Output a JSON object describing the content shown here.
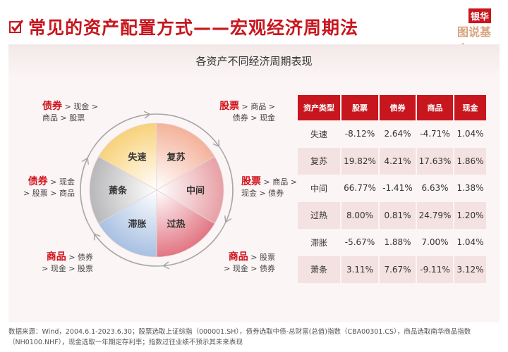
{
  "header": {
    "title": "常见的资产配置方式——宏观经济周期法",
    "logo_top": "银华",
    "logo_bottom": "图说基金"
  },
  "card": {
    "title": "各资产不同经济周期表现"
  },
  "cycle": {
    "phases": [
      {
        "name": "失速",
        "color": "#f8d27a"
      },
      {
        "name": "复苏",
        "color": "#f4b29a"
      },
      {
        "name": "中间",
        "color": "#e7a0a6"
      },
      {
        "name": "过热",
        "color": "#e27582"
      },
      {
        "name": "滞胀",
        "color": "#a8c0e2"
      },
      {
        "name": "萧条",
        "color": "#b8b8ba"
      }
    ],
    "rankings": [
      {
        "lead": "债券",
        "rest1": " > 现金 >",
        "rest2": "商品 > 股票"
      },
      {
        "lead": "股票",
        "rest1": " > 商品 >",
        "rest2": "债券 > 现金"
      },
      {
        "lead": "债券",
        "rest1": " > 现金",
        "rest2": "> 股票 > 商品"
      },
      {
        "lead": "股票",
        "rest1": " > 商品 >",
        "rest2": "现金 > 债券"
      },
      {
        "lead": "商品",
        "rest1": " > 债券",
        "rest2": "> 现金 > 股票"
      },
      {
        "lead": "商品",
        "rest1": " > 股票",
        "rest2": "> 现金 > 债券"
      }
    ]
  },
  "table": {
    "headers": [
      "资产类型",
      "股票",
      "债券",
      "商品",
      "现金"
    ],
    "rows": [
      [
        "失速",
        "-8.12%",
        "2.64%",
        "-4.71%",
        "1.04%"
      ],
      [
        "复苏",
        "19.82%",
        "4.21%",
        "17.63%",
        "1.86%"
      ],
      [
        "中间",
        "66.77%",
        "-1.41%",
        "6.63%",
        "1.38%"
      ],
      [
        "过热",
        "8.00%",
        "0.81%",
        "24.79%",
        "1.20%"
      ],
      [
        "滞胀",
        "-5.67%",
        "1.88%",
        "7.00%",
        "1.04%"
      ],
      [
        "萧条",
        "3.11%",
        "7.67%",
        "-9.11%",
        "3.12%"
      ]
    ]
  },
  "footer": {
    "note": "数据来源：Wind，2004.6.1-2023.6.30；股票选取上证综指（000001.SH），债券选取中债-总财富(总值)指数（CBA00301.CS），商品选取南华商品指数（NH0100.NHF），现金选取一年期定存利率；指数过往业绩不预示其未来表现"
  }
}
